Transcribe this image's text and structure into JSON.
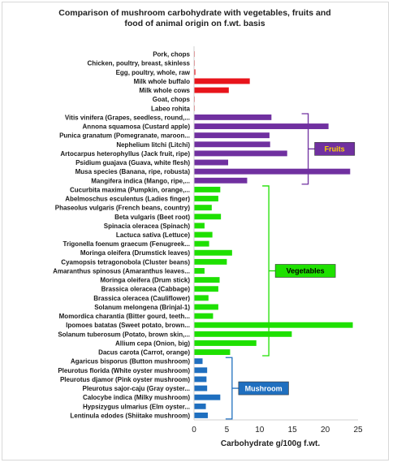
{
  "chart_data": {
    "type": "bar",
    "orientation": "horizontal",
    "title": "Comparison of mushroom carbohydrate with vegetables, fruits and\nfood of animal origin on f.wt. basis",
    "xlabel": "Carbohydrate g/100g f.wt.",
    "ylabel": "",
    "xlim": [
      0,
      25
    ],
    "xticks": [
      "0",
      "5",
      "10",
      "15",
      "20",
      "25"
    ],
    "grid": false,
    "legend": "none",
    "series": [
      {
        "group": "animal",
        "color": "#e8141b",
        "categories": [
          "Pork, chops",
          "Chicken, poultry, breast, skinless",
          "Egg, poultry, whole, raw",
          "Milk whole buffalo",
          "Milk whole cows",
          "Goat, chops",
          "Labeo rohita"
        ],
        "values": [
          0.1,
          0.1,
          0.2,
          8.5,
          5.3,
          0.1,
          0.1
        ]
      },
      {
        "group": "fruits",
        "color": "#7030a0",
        "categories": [
          "Vitis vinifera (Grapes, seedless, round,...",
          "Annona squamosa (Custard apple)",
          "Punica granatum (Pomegranate, maroon...",
          "Nephelium litchi (Litchi)",
          "Artocarpus heterophyllus (Jack fruit, ripe)",
          "Psidium guajava (Guava, white flesh)",
          "Musa species (Banana, ripe, robusta)",
          "Mangifera indica (Mango, ripe,..."
        ],
        "values": [
          11.8,
          20.5,
          11.5,
          11.6,
          14.2,
          5.2,
          23.8,
          8.1
        ]
      },
      {
        "group": "vegetables",
        "color": "#1ee000",
        "categories": [
          "Cucurbita maxima (Pumpkin, orange,...",
          "Abelmoschus esculentus (Ladies finger)",
          "Phaseolus vulgaris (French beans, country)",
          "Beta vulgaris (Beet root)",
          "Spinacia oleracea (Spinach)",
          "Lactuca sativa (Lettuce)",
          "Trigonella foenum graecum (Fenugreek...",
          "Moringa oleifera (Drumstick leaves)",
          "Cyamopsis tetragonobola (Cluster beans)",
          "Amaranthus spinosus (Amaranthus leaves...",
          "Moringa oleifera (Drum stick)",
          "Brassica oleracea (Cabbage)",
          "Brassica oleracea (Cauliflower)",
          "Solanum melongena (Brinjal-1)",
          "Momordica charantia (Bitter gourd, teeth...",
          "Ipomoes batatas (Sweet potato, brown...",
          "Solanum tuberosum (Potato, brown skin,...",
          "Allium cepa (Onion, big)",
          "Dacus carota (Carrot, orange)"
        ],
        "values": [
          4.0,
          3.7,
          2.7,
          4.1,
          1.6,
          2.8,
          2.3,
          5.8,
          5.0,
          1.6,
          3.9,
          3.7,
          2.2,
          3.7,
          2.9,
          24.2,
          14.9,
          9.5,
          5.5
        ]
      },
      {
        "group": "mushroom",
        "color": "#1f6fbf",
        "categories": [
          "Agaricus bisporus (Button mushroom)",
          "Pleurotus florida (White oyster mushroom)",
          "Pleurotus djamor (Pink oyster mushroom)",
          "Pleurotus sajor-caju (Gray oyster...",
          "Calocybe indica (Milky mushroom)",
          "Hypsizygus ulmarius (Elm oyster...",
          "Lentinula edodes (Shiitake mushroom)"
        ],
        "values": [
          1.3,
          2.0,
          1.9,
          2.0,
          4.0,
          1.8,
          2.1
        ]
      }
    ],
    "group_labels": [
      {
        "text": "Fruits",
        "group": "fruits",
        "bg": "#7030a0",
        "fg": "#ffd600"
      },
      {
        "text": "Vegetables",
        "group": "vegetables",
        "bg": "#1ee000",
        "fg": "#000000"
      },
      {
        "text": "Mushroom",
        "group": "mushroom",
        "bg": "#1f6fbf",
        "fg": "#ffffff"
      }
    ]
  }
}
